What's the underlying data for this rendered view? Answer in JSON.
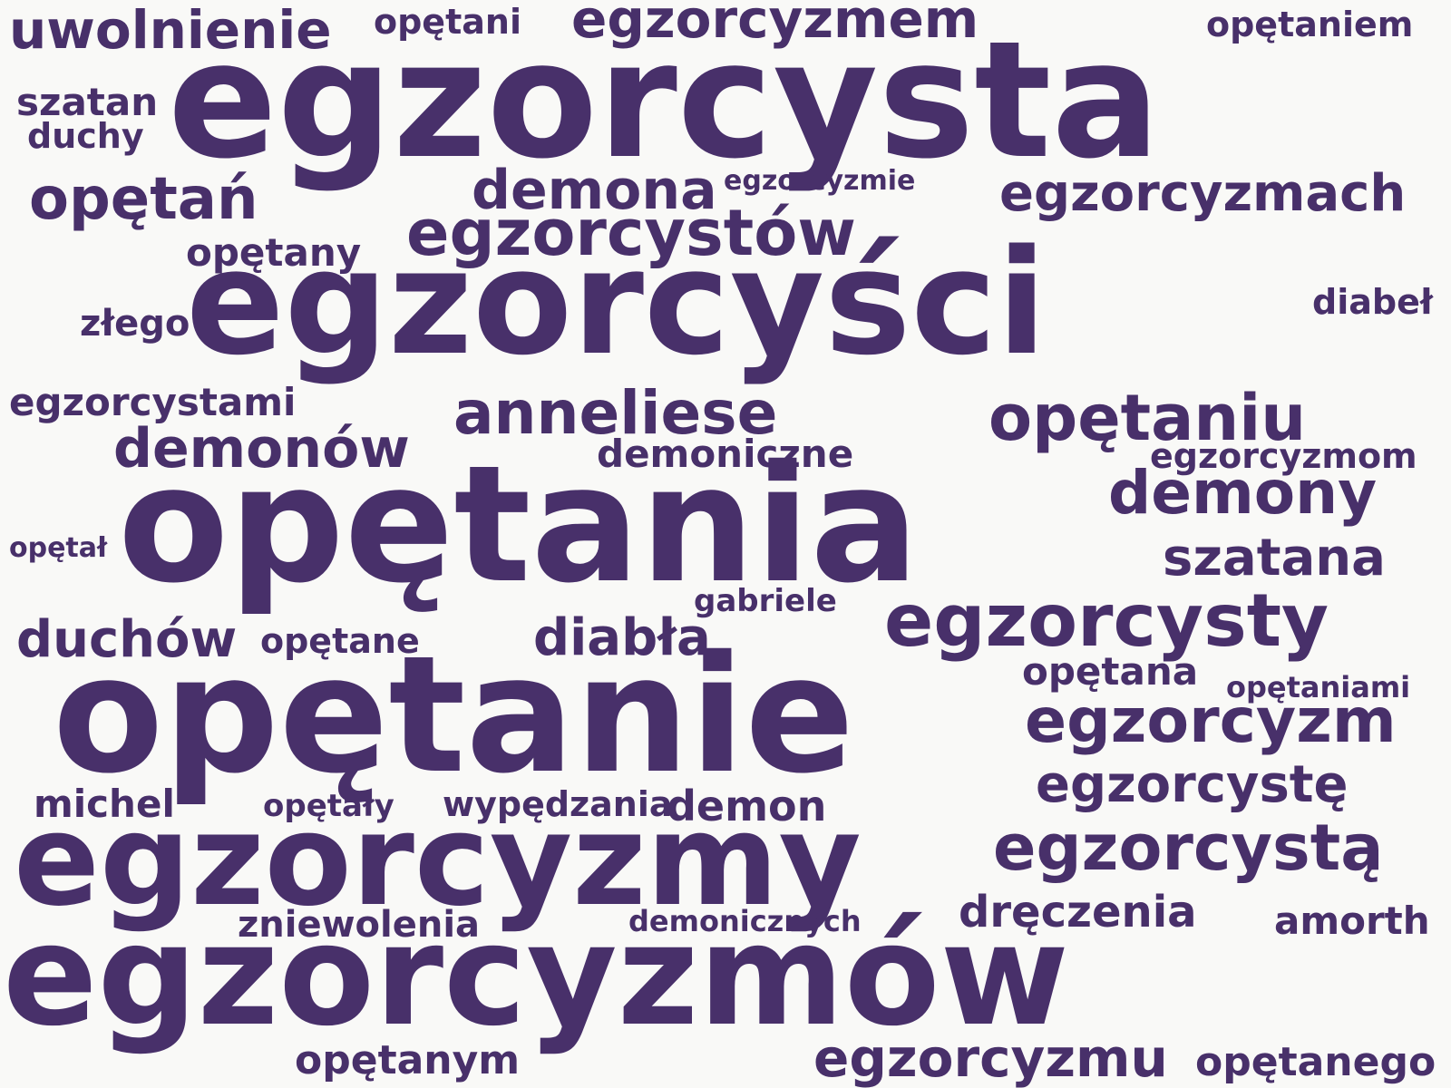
{
  "palette": {
    "background": "#f9f9f7",
    "text": "#48306a"
  },
  "words": [
    {
      "id": "w01",
      "text": "uwolnienie"
    },
    {
      "id": "w02",
      "text": "opętani"
    },
    {
      "id": "w03",
      "text": "egzorcyzmem"
    },
    {
      "id": "w04",
      "text": "opętaniem"
    },
    {
      "id": "w05",
      "text": "egzorcysta"
    },
    {
      "id": "w06",
      "text": "szatan"
    },
    {
      "id": "w07",
      "text": "duchy"
    },
    {
      "id": "w08",
      "text": "opętań"
    },
    {
      "id": "w09",
      "text": "demona"
    },
    {
      "id": "w10",
      "text": "egzorcyzmie"
    },
    {
      "id": "w11",
      "text": "egzorcyzmach"
    },
    {
      "id": "w12",
      "text": "egzorcystów"
    },
    {
      "id": "w13",
      "text": "opętany"
    },
    {
      "id": "w14",
      "text": "egzorcyści"
    },
    {
      "id": "w15",
      "text": "diabeł"
    },
    {
      "id": "w16",
      "text": "złego"
    },
    {
      "id": "w17",
      "text": "egzorcystami"
    },
    {
      "id": "w18",
      "text": "anneliese"
    },
    {
      "id": "w19",
      "text": "opętaniu"
    },
    {
      "id": "w20",
      "text": "demonów"
    },
    {
      "id": "w21",
      "text": "demoniczne"
    },
    {
      "id": "w22",
      "text": "egzorcyzmom"
    },
    {
      "id": "w23",
      "text": "opętania"
    },
    {
      "id": "w24",
      "text": "demony"
    },
    {
      "id": "w25",
      "text": "opętał"
    },
    {
      "id": "w26",
      "text": "szatana"
    },
    {
      "id": "w27",
      "text": "gabriele"
    },
    {
      "id": "w28",
      "text": "egzorcysty"
    },
    {
      "id": "w29",
      "text": "duchów"
    },
    {
      "id": "w30",
      "text": "opętane"
    },
    {
      "id": "w31",
      "text": "diabła"
    },
    {
      "id": "w32",
      "text": "opętana"
    },
    {
      "id": "w33",
      "text": "opętaniami"
    },
    {
      "id": "w34",
      "text": "opętanie"
    },
    {
      "id": "w35",
      "text": "egzorcyzm"
    },
    {
      "id": "w36",
      "text": "egzorcystę"
    },
    {
      "id": "w37",
      "text": "michel"
    },
    {
      "id": "w38",
      "text": "opętały"
    },
    {
      "id": "w39",
      "text": "wypędzania"
    },
    {
      "id": "w40",
      "text": "demon"
    },
    {
      "id": "w41",
      "text": "egzorcyzmy"
    },
    {
      "id": "w42",
      "text": "egzorcystą"
    },
    {
      "id": "w43",
      "text": "zniewolenia"
    },
    {
      "id": "w44",
      "text": "demonicznych"
    },
    {
      "id": "w45",
      "text": "dręczenia"
    },
    {
      "id": "w46",
      "text": "amorth"
    },
    {
      "id": "w47",
      "text": "egzorcyzmów"
    },
    {
      "id": "w48",
      "text": "opętanym"
    },
    {
      "id": "w49",
      "text": "egzorcyzmu"
    },
    {
      "id": "w50",
      "text": "opętanego"
    }
  ]
}
